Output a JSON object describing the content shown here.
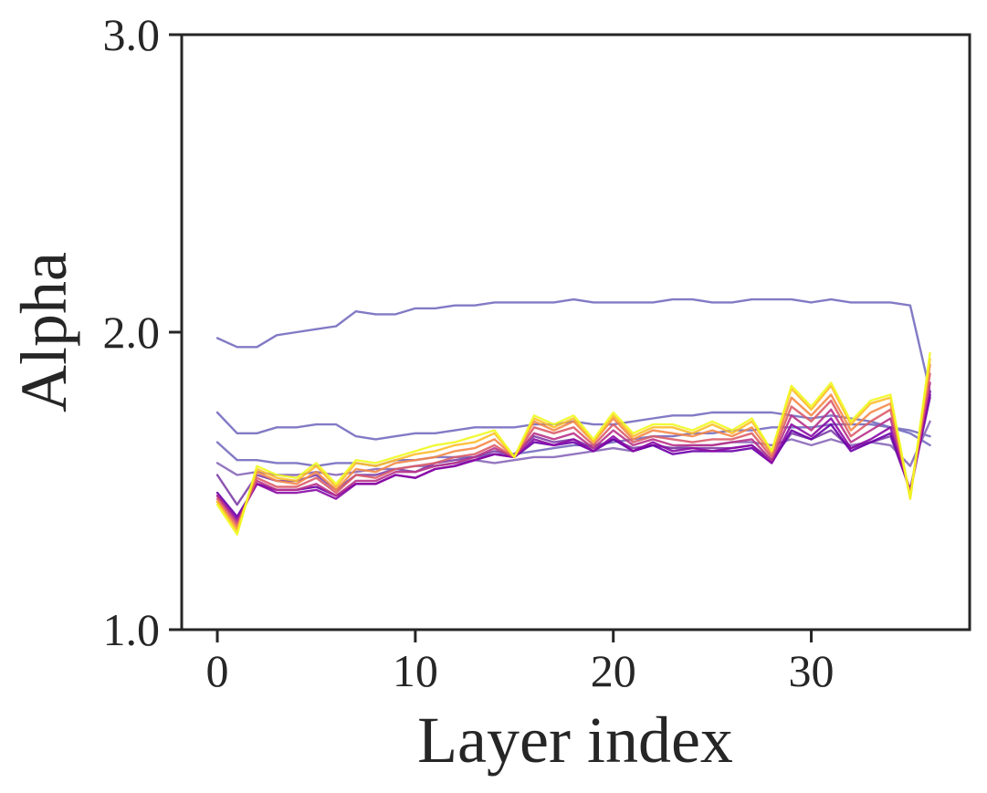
{
  "chart_data": {
    "type": "line",
    "title": "",
    "xlabel": "Layer index",
    "ylabel": "Alpha",
    "xlim": [
      -1.8,
      38
    ],
    "ylim": [
      1.0,
      3.0
    ],
    "xticks": [
      0,
      10,
      20,
      30
    ],
    "xtick_labels": [
      "0",
      "10",
      "20",
      "30"
    ],
    "yticks": [
      1.0,
      2.0,
      3.0
    ],
    "ytick_labels": [
      "1.0",
      "2.0",
      "3.0"
    ],
    "grid": false,
    "legend": "none",
    "x": [
      0,
      1,
      2,
      3,
      4,
      5,
      6,
      7,
      8,
      9,
      10,
      11,
      12,
      13,
      14,
      15,
      16,
      17,
      18,
      19,
      20,
      21,
      22,
      23,
      24,
      25,
      26,
      27,
      28,
      29,
      30,
      31,
      32,
      33,
      34,
      35,
      36
    ],
    "series": [
      {
        "color": "#7b73c2",
        "values": [
          1.98,
          1.95,
          1.95,
          1.99,
          2.0,
          2.01,
          2.02,
          2.07,
          2.06,
          2.06,
          2.08,
          2.08,
          2.09,
          2.09,
          2.1,
          2.1,
          2.1,
          2.1,
          2.11,
          2.1,
          2.1,
          2.1,
          2.1,
          2.11,
          2.11,
          2.1,
          2.1,
          2.11,
          2.11,
          2.11,
          2.1,
          2.11,
          2.1,
          2.1,
          2.1,
          2.09,
          1.8
        ]
      },
      {
        "color": "#7b73c2",
        "values": [
          1.73,
          1.66,
          1.66,
          1.68,
          1.68,
          1.69,
          1.69,
          1.65,
          1.64,
          1.65,
          1.66,
          1.66,
          1.67,
          1.68,
          1.68,
          1.68,
          1.69,
          1.69,
          1.7,
          1.69,
          1.69,
          1.7,
          1.71,
          1.72,
          1.72,
          1.73,
          1.73,
          1.73,
          1.73,
          1.72,
          1.71,
          1.72,
          1.71,
          1.7,
          1.68,
          1.66,
          1.62
        ]
      },
      {
        "color": "#7b73c2",
        "values": [
          1.63,
          1.57,
          1.57,
          1.56,
          1.56,
          1.55,
          1.56,
          1.56,
          1.55,
          1.57,
          1.57,
          1.58,
          1.58,
          1.58,
          1.59,
          1.59,
          1.6,
          1.61,
          1.62,
          1.62,
          1.63,
          1.64,
          1.65,
          1.65,
          1.66,
          1.66,
          1.67,
          1.67,
          1.68,
          1.68,
          1.68,
          1.69,
          1.69,
          1.69,
          1.68,
          1.67,
          1.65
        ]
      },
      {
        "color": "#8e6fbd",
        "values": [
          1.56,
          1.52,
          1.53,
          1.52,
          1.52,
          1.53,
          1.52,
          1.53,
          1.54,
          1.54,
          1.55,
          1.55,
          1.56,
          1.57,
          1.56,
          1.57,
          1.58,
          1.58,
          1.59,
          1.6,
          1.61,
          1.6,
          1.62,
          1.61,
          1.62,
          1.62,
          1.63,
          1.63,
          1.62,
          1.64,
          1.62,
          1.64,
          1.62,
          1.63,
          1.62,
          1.55,
          1.7
        ]
      },
      {
        "color": "#7e3fa8",
        "values": [
          1.52,
          1.42,
          1.52,
          1.5,
          1.5,
          1.52,
          1.47,
          1.52,
          1.52,
          1.54,
          1.53,
          1.56,
          1.57,
          1.58,
          1.6,
          1.59,
          1.65,
          1.63,
          1.64,
          1.61,
          1.64,
          1.61,
          1.62,
          1.61,
          1.61,
          1.61,
          1.61,
          1.62,
          1.57,
          1.66,
          1.64,
          1.67,
          1.61,
          1.63,
          1.65,
          1.47,
          1.78
        ]
      },
      {
        "color": "#6a00a8",
        "values": [
          1.46,
          1.38,
          1.49,
          1.47,
          1.47,
          1.48,
          1.45,
          1.49,
          1.49,
          1.52,
          1.51,
          1.54,
          1.55,
          1.57,
          1.59,
          1.58,
          1.63,
          1.62,
          1.63,
          1.6,
          1.64,
          1.6,
          1.62,
          1.59,
          1.6,
          1.6,
          1.6,
          1.61,
          1.56,
          1.67,
          1.64,
          1.69,
          1.6,
          1.63,
          1.66,
          1.47,
          1.79
        ]
      },
      {
        "color": "#8b0aa5",
        "values": [
          1.45,
          1.37,
          1.49,
          1.46,
          1.46,
          1.47,
          1.44,
          1.49,
          1.49,
          1.52,
          1.51,
          1.54,
          1.55,
          1.57,
          1.59,
          1.58,
          1.64,
          1.62,
          1.64,
          1.6,
          1.65,
          1.6,
          1.63,
          1.6,
          1.61,
          1.6,
          1.61,
          1.62,
          1.56,
          1.69,
          1.65,
          1.71,
          1.61,
          1.64,
          1.68,
          1.46,
          1.8
        ]
      },
      {
        "color": "#b83289",
        "values": [
          1.45,
          1.36,
          1.5,
          1.47,
          1.47,
          1.49,
          1.45,
          1.5,
          1.5,
          1.53,
          1.53,
          1.55,
          1.56,
          1.58,
          1.61,
          1.58,
          1.66,
          1.64,
          1.66,
          1.61,
          1.67,
          1.62,
          1.64,
          1.62,
          1.62,
          1.62,
          1.63,
          1.64,
          1.57,
          1.72,
          1.67,
          1.74,
          1.63,
          1.67,
          1.71,
          1.46,
          1.83
        ]
      },
      {
        "color": "#db5c68",
        "values": [
          1.44,
          1.35,
          1.51,
          1.48,
          1.48,
          1.51,
          1.46,
          1.52,
          1.51,
          1.54,
          1.55,
          1.56,
          1.58,
          1.59,
          1.62,
          1.58,
          1.68,
          1.66,
          1.68,
          1.62,
          1.69,
          1.63,
          1.65,
          1.64,
          1.63,
          1.64,
          1.64,
          1.66,
          1.58,
          1.75,
          1.7,
          1.77,
          1.65,
          1.7,
          1.74,
          1.45,
          1.86
        ]
      },
      {
        "color": "#f48849",
        "values": [
          1.43,
          1.34,
          1.53,
          1.5,
          1.49,
          1.53,
          1.47,
          1.54,
          1.53,
          1.56,
          1.57,
          1.58,
          1.6,
          1.61,
          1.64,
          1.58,
          1.7,
          1.67,
          1.7,
          1.63,
          1.71,
          1.64,
          1.67,
          1.66,
          1.65,
          1.67,
          1.65,
          1.68,
          1.59,
          1.78,
          1.72,
          1.79,
          1.67,
          1.73,
          1.76,
          1.45,
          1.89
        ]
      },
      {
        "color": "#febd2a",
        "values": [
          1.43,
          1.33,
          1.54,
          1.51,
          1.5,
          1.55,
          1.48,
          1.56,
          1.55,
          1.57,
          1.59,
          1.6,
          1.62,
          1.63,
          1.66,
          1.58,
          1.71,
          1.68,
          1.71,
          1.63,
          1.72,
          1.65,
          1.68,
          1.68,
          1.66,
          1.69,
          1.66,
          1.7,
          1.6,
          1.81,
          1.74,
          1.82,
          1.69,
          1.76,
          1.78,
          1.44,
          1.91
        ]
      },
      {
        "color": "#f0f921",
        "values": [
          1.42,
          1.32,
          1.55,
          1.52,
          1.51,
          1.56,
          1.49,
          1.57,
          1.56,
          1.58,
          1.6,
          1.62,
          1.63,
          1.65,
          1.67,
          1.58,
          1.72,
          1.69,
          1.72,
          1.64,
          1.73,
          1.66,
          1.69,
          1.69,
          1.67,
          1.7,
          1.67,
          1.71,
          1.6,
          1.82,
          1.75,
          1.83,
          1.7,
          1.77,
          1.79,
          1.44,
          1.93
        ]
      }
    ]
  }
}
